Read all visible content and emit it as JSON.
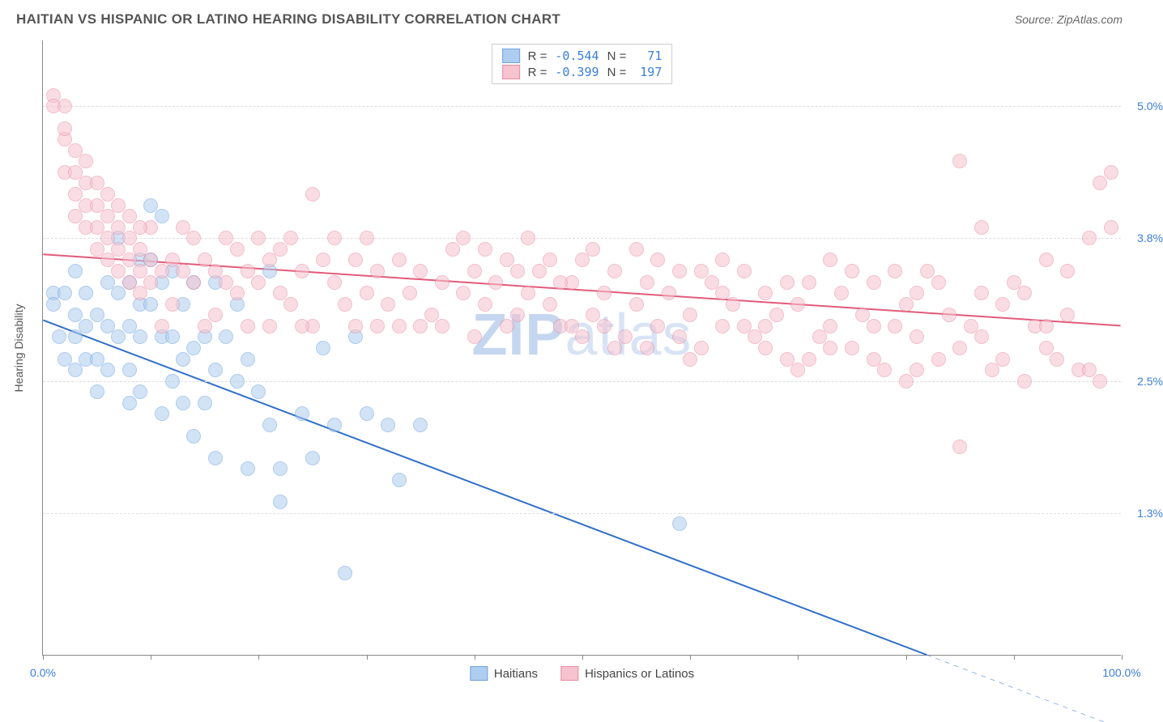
{
  "header": {
    "title": "HAITIAN VS HISPANIC OR LATINO HEARING DISABILITY CORRELATION CHART",
    "source": "Source: ZipAtlas.com"
  },
  "watermark": {
    "bold": "ZIP",
    "rest": "atlas"
  },
  "chart": {
    "type": "scatter",
    "y_axis_label": "Hearing Disability",
    "x_range": [
      0,
      100
    ],
    "y_range": [
      0,
      5.6
    ],
    "y_ticks": [
      {
        "v": 1.3,
        "label": "1.3%"
      },
      {
        "v": 2.5,
        "label": "2.5%"
      },
      {
        "v": 3.8,
        "label": "3.8%"
      },
      {
        "v": 5.0,
        "label": "5.0%"
      }
    ],
    "x_ticks": [
      0,
      10,
      20,
      30,
      40,
      50,
      60,
      70,
      80,
      90,
      100
    ],
    "x_tick_labels": {
      "min": "0.0%",
      "max": "100.0%"
    },
    "plot_bg": "#ffffff",
    "grid_color": "#dddddd",
    "axis_color": "#888888",
    "marker_radius": 9,
    "marker_opacity": 0.55,
    "series": [
      {
        "id": "haitians",
        "label": "Haitians",
        "color_fill": "#aecdf0",
        "color_stroke": "#6fa3dd",
        "r": "-0.544",
        "n": "71",
        "trend": {
          "x1": 0,
          "y1": 3.05,
          "x2": 82,
          "y2": 0.0,
          "color": "#2f6fc9",
          "width": 2,
          "dash_after_x": 82
        },
        "points": [
          [
            1,
            3.3
          ],
          [
            1,
            3.2
          ],
          [
            2,
            3.3
          ],
          [
            1.5,
            2.9
          ],
          [
            2,
            2.7
          ],
          [
            3,
            3.5
          ],
          [
            3,
            3.1
          ],
          [
            3,
            2.9
          ],
          [
            3,
            2.6
          ],
          [
            4,
            3.3
          ],
          [
            4,
            3.0
          ],
          [
            4,
            2.7
          ],
          [
            5,
            3.1
          ],
          [
            5,
            2.7
          ],
          [
            5,
            2.4
          ],
          [
            6,
            3.4
          ],
          [
            6,
            3.0
          ],
          [
            6,
            2.6
          ],
          [
            7,
            3.8
          ],
          [
            7,
            3.3
          ],
          [
            7,
            2.9
          ],
          [
            8,
            3.4
          ],
          [
            8,
            3.0
          ],
          [
            8,
            2.6
          ],
          [
            8,
            2.3
          ],
          [
            9,
            3.6
          ],
          [
            9,
            3.2
          ],
          [
            9,
            2.9
          ],
          [
            9,
            2.4
          ],
          [
            10,
            4.1
          ],
          [
            10,
            3.6
          ],
          [
            10,
            3.2
          ],
          [
            11,
            4.0
          ],
          [
            11,
            3.4
          ],
          [
            11,
            2.9
          ],
          [
            11,
            2.2
          ],
          [
            12,
            3.5
          ],
          [
            12,
            2.9
          ],
          [
            12,
            2.5
          ],
          [
            13,
            3.2
          ],
          [
            13,
            2.7
          ],
          [
            13,
            2.3
          ],
          [
            14,
            3.4
          ],
          [
            14,
            2.8
          ],
          [
            14,
            2.0
          ],
          [
            15,
            2.9
          ],
          [
            15,
            2.3
          ],
          [
            16,
            3.4
          ],
          [
            16,
            2.6
          ],
          [
            16,
            1.8
          ],
          [
            17,
            2.9
          ],
          [
            18,
            3.2
          ],
          [
            18,
            2.5
          ],
          [
            19,
            2.7
          ],
          [
            19,
            1.7
          ],
          [
            20,
            2.4
          ],
          [
            21,
            3.5
          ],
          [
            21,
            2.1
          ],
          [
            22,
            1.7
          ],
          [
            22,
            1.4
          ],
          [
            24,
            2.2
          ],
          [
            25,
            1.8
          ],
          [
            26,
            2.8
          ],
          [
            27,
            2.1
          ],
          [
            28,
            0.75
          ],
          [
            29,
            2.9
          ],
          [
            30,
            2.2
          ],
          [
            32,
            2.1
          ],
          [
            33,
            1.6
          ],
          [
            35,
            2.1
          ],
          [
            59,
            1.2
          ]
        ]
      },
      {
        "id": "hispanics",
        "label": "Hispanics or Latinos",
        "color_fill": "#f6c3cf",
        "color_stroke": "#e88ca2",
        "r": "-0.399",
        "n": "197",
        "trend": {
          "x1": 0,
          "y1": 3.65,
          "x2": 100,
          "y2": 3.0,
          "color": "#e35a7a",
          "width": 2
        },
        "points": [
          [
            1,
            5.1
          ],
          [
            1,
            5.0
          ],
          [
            2,
            5.0
          ],
          [
            2,
            4.7
          ],
          [
            3,
            4.6
          ],
          [
            2,
            4.4
          ],
          [
            3,
            4.2
          ],
          [
            4,
            4.5
          ],
          [
            3,
            4.0
          ],
          [
            4,
            4.1
          ],
          [
            5,
            4.1
          ],
          [
            4,
            3.9
          ],
          [
            5,
            3.9
          ],
          [
            6,
            4.0
          ],
          [
            5,
            3.7
          ],
          [
            6,
            3.8
          ],
          [
            7,
            3.9
          ],
          [
            6,
            3.6
          ],
          [
            7,
            3.7
          ],
          [
            8,
            3.8
          ],
          [
            7,
            3.5
          ],
          [
            8,
            3.6
          ],
          [
            9,
            3.7
          ],
          [
            8,
            3.4
          ],
          [
            9,
            3.5
          ],
          [
            10,
            3.6
          ],
          [
            9,
            3.3
          ],
          [
            10,
            3.4
          ],
          [
            11,
            3.5
          ],
          [
            12,
            3.6
          ],
          [
            13,
            3.5
          ],
          [
            14,
            3.4
          ],
          [
            15,
            3.6
          ],
          [
            16,
            3.5
          ],
          [
            17,
            3.4
          ],
          [
            18,
            3.3
          ],
          [
            19,
            3.5
          ],
          [
            20,
            3.4
          ],
          [
            21,
            3.6
          ],
          [
            22,
            3.3
          ],
          [
            23,
            3.8
          ],
          [
            24,
            3.5
          ],
          [
            25,
            4.2
          ],
          [
            26,
            3.6
          ],
          [
            27,
            3.4
          ],
          [
            28,
            3.2
          ],
          [
            29,
            3.6
          ],
          [
            30,
            3.3
          ],
          [
            31,
            3.5
          ],
          [
            32,
            3.2
          ],
          [
            33,
            3.6
          ],
          [
            34,
            3.3
          ],
          [
            35,
            3.5
          ],
          [
            36,
            3.1
          ],
          [
            37,
            3.4
          ],
          [
            38,
            3.7
          ],
          [
            39,
            3.3
          ],
          [
            40,
            3.5
          ],
          [
            41,
            3.2
          ],
          [
            42,
            3.4
          ],
          [
            43,
            3.6
          ],
          [
            44,
            3.1
          ],
          [
            45,
            3.3
          ],
          [
            46,
            3.5
          ],
          [
            47,
            3.2
          ],
          [
            48,
            3.0
          ],
          [
            49,
            3.4
          ],
          [
            50,
            3.6
          ],
          [
            51,
            3.1
          ],
          [
            52,
            3.3
          ],
          [
            53,
            3.5
          ],
          [
            54,
            2.9
          ],
          [
            55,
            3.2
          ],
          [
            56,
            3.4
          ],
          [
            57,
            3.0
          ],
          [
            58,
            3.3
          ],
          [
            59,
            3.5
          ],
          [
            60,
            3.1
          ],
          [
            61,
            2.8
          ],
          [
            62,
            3.4
          ],
          [
            63,
            3.0
          ],
          [
            64,
            3.2
          ],
          [
            65,
            3.5
          ],
          [
            66,
            2.9
          ],
          [
            67,
            3.3
          ],
          [
            68,
            3.1
          ],
          [
            69,
            2.7
          ],
          [
            70,
            3.2
          ],
          [
            71,
            3.4
          ],
          [
            72,
            2.9
          ],
          [
            73,
            3.0
          ],
          [
            74,
            3.3
          ],
          [
            75,
            2.8
          ],
          [
            76,
            3.1
          ],
          [
            77,
            3.4
          ],
          [
            78,
            2.6
          ],
          [
            79,
            3.0
          ],
          [
            80,
            3.2
          ],
          [
            81,
            2.9
          ],
          [
            82,
            3.5
          ],
          [
            83,
            2.7
          ],
          [
            84,
            3.1
          ],
          [
            85,
            4.5
          ],
          [
            85,
            2.8
          ],
          [
            86,
            3.0
          ],
          [
            87,
            3.9
          ],
          [
            88,
            2.6
          ],
          [
            89,
            3.2
          ],
          [
            90,
            3.4
          ],
          [
            91,
            2.5
          ],
          [
            92,
            3.0
          ],
          [
            93,
            3.6
          ],
          [
            94,
            2.7
          ],
          [
            95,
            3.1
          ],
          [
            96,
            2.6
          ],
          [
            97,
            3.8
          ],
          [
            98,
            4.3
          ],
          [
            98,
            2.5
          ],
          [
            99,
            4.4
          ],
          [
            99,
            3.9
          ],
          [
            85,
            1.9
          ],
          [
            22,
            3.7
          ],
          [
            15,
            3.0
          ],
          [
            18,
            3.7
          ],
          [
            30,
            3.8
          ],
          [
            35,
            3.0
          ],
          [
            40,
            2.9
          ],
          [
            45,
            3.8
          ],
          [
            50,
            2.9
          ],
          [
            55,
            3.7
          ],
          [
            60,
            2.7
          ],
          [
            65,
            3.0
          ],
          [
            70,
            2.6
          ],
          [
            75,
            3.5
          ],
          [
            80,
            2.5
          ],
          [
            12,
            3.2
          ],
          [
            14,
            3.8
          ],
          [
            16,
            3.1
          ],
          [
            19,
            3.0
          ],
          [
            21,
            3.0
          ],
          [
            23,
            3.2
          ],
          [
            27,
            3.8
          ],
          [
            29,
            3.0
          ],
          [
            31,
            3.0
          ],
          [
            33,
            3.0
          ],
          [
            37,
            3.0
          ],
          [
            39,
            3.8
          ],
          [
            41,
            3.7
          ],
          [
            43,
            3.0
          ],
          [
            47,
            3.6
          ],
          [
            49,
            3.0
          ],
          [
            51,
            3.7
          ],
          [
            53,
            2.8
          ],
          [
            57,
            3.6
          ],
          [
            59,
            2.9
          ],
          [
            61,
            3.5
          ],
          [
            63,
            3.6
          ],
          [
            67,
            2.8
          ],
          [
            69,
            3.4
          ],
          [
            71,
            2.7
          ],
          [
            73,
            3.6
          ],
          [
            77,
            2.7
          ],
          [
            79,
            3.5
          ],
          [
            81,
            3.3
          ],
          [
            83,
            3.4
          ],
          [
            87,
            2.9
          ],
          [
            89,
            2.7
          ],
          [
            91,
            3.3
          ],
          [
            93,
            2.8
          ],
          [
            95,
            3.5
          ],
          [
            97,
            2.6
          ],
          [
            11,
            3.0
          ],
          [
            13,
            3.9
          ],
          [
            17,
            3.8
          ],
          [
            10,
            3.9
          ],
          [
            8,
            4.0
          ],
          [
            6,
            4.2
          ],
          [
            4,
            4.3
          ],
          [
            2,
            4.8
          ],
          [
            3,
            4.4
          ],
          [
            5,
            4.3
          ],
          [
            7,
            4.1
          ],
          [
            9,
            3.9
          ],
          [
            20,
            3.8
          ],
          [
            25,
            3.0
          ],
          [
            63,
            3.3
          ],
          [
            67,
            3.0
          ],
          [
            73,
            2.8
          ],
          [
            77,
            3.0
          ],
          [
            81,
            2.6
          ],
          [
            87,
            3.3
          ],
          [
            93,
            3.0
          ],
          [
            44,
            3.5
          ],
          [
            48,
            3.4
          ],
          [
            52,
            3.0
          ],
          [
            56,
            2.8
          ],
          [
            24,
            3.0
          ]
        ]
      }
    ]
  }
}
